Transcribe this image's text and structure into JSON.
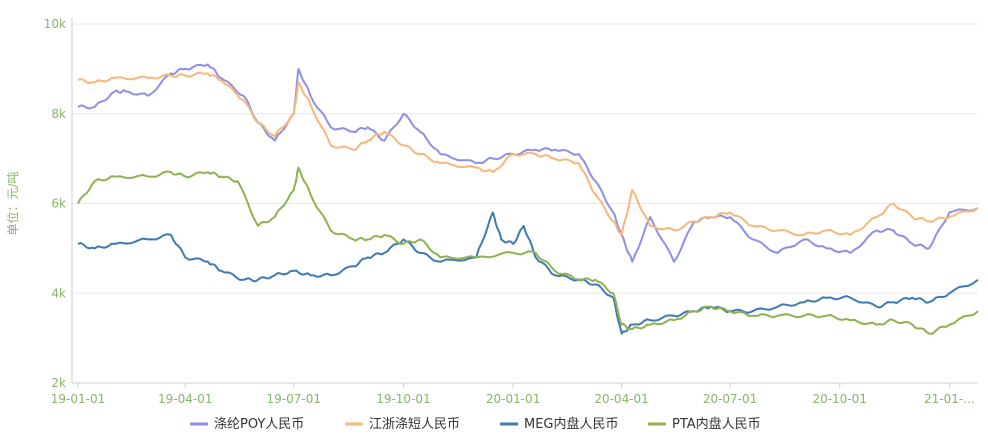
{
  "chart_data": {
    "type": "line",
    "ylabel": "单位：元/吨",
    "ylim": [
      2000,
      10000
    ],
    "yticks": [
      2000,
      4000,
      6000,
      8000,
      10000
    ],
    "ytick_labels": [
      "2k",
      "4k",
      "6k",
      "8k",
      "10k"
    ],
    "xlim": [
      "2019-01-01",
      "2021-01-25"
    ],
    "xticks": [
      "2019-01-01",
      "2019-04-01",
      "2019-07-01",
      "2019-10-01",
      "2020-01-01",
      "2020-04-01",
      "2020-07-01",
      "2020-10-01",
      "2021-01-01"
    ],
    "xtick_labels": [
      "19-01-01",
      "19-04-01",
      "19-07-01",
      "19-10-01",
      "20-01-01",
      "20-04-01",
      "20-07-01",
      "20-10-01",
      "21-01-..."
    ],
    "grid": "horizontal",
    "legend_position": "bottom",
    "axis_color": "#8ab46a",
    "series": [
      {
        "name": "涤纶POY人民币",
        "color": "#8f8fe6",
        "x": [
          "2019-01-01",
          "2019-01-15",
          "2019-02-01",
          "2019-02-10",
          "2019-03-01",
          "2019-03-20",
          "2019-04-01",
          "2019-04-20",
          "2019-05-01",
          "2019-05-20",
          "2019-06-01",
          "2019-06-15",
          "2019-07-01",
          "2019-07-05",
          "2019-07-15",
          "2019-08-01",
          "2019-08-20",
          "2019-09-01",
          "2019-09-15",
          "2019-10-01",
          "2019-10-15",
          "2019-11-01",
          "2019-12-01",
          "2019-12-15",
          "2020-01-01",
          "2020-01-20",
          "2020-02-05",
          "2020-02-25",
          "2020-03-10",
          "2020-03-25",
          "2020-04-01",
          "2020-04-10",
          "2020-04-25",
          "2020-05-15",
          "2020-06-01",
          "2020-06-15",
          "2020-07-01",
          "2020-07-20",
          "2020-08-10",
          "2020-09-01",
          "2020-09-20",
          "2020-10-10",
          "2020-11-01",
          "2020-11-15",
          "2020-12-01",
          "2020-12-15",
          "2021-01-01",
          "2021-01-25"
        ],
        "values": [
          8150,
          8150,
          8500,
          8500,
          8400,
          8900,
          9000,
          9100,
          8800,
          8400,
          7800,
          7400,
          8000,
          9000,
          8400,
          7700,
          7600,
          7700,
          7400,
          8000,
          7600,
          7100,
          6900,
          7000,
          7100,
          7200,
          7200,
          7100,
          6500,
          5800,
          5300,
          4700,
          5700,
          4700,
          5600,
          5700,
          5700,
          5200,
          4900,
          5200,
          5000,
          4900,
          5400,
          5400,
          5100,
          5000,
          5800,
          5900
        ]
      },
      {
        "name": "江浙涤短人民币",
        "color": "#f5b87a",
        "x": [
          "2019-01-01",
          "2019-01-15",
          "2019-02-01",
          "2019-03-01",
          "2019-03-20",
          "2019-04-01",
          "2019-04-20",
          "2019-05-01",
          "2019-05-20",
          "2019-06-01",
          "2019-06-15",
          "2019-07-01",
          "2019-07-05",
          "2019-07-15",
          "2019-08-01",
          "2019-08-20",
          "2019-09-01",
          "2019-09-15",
          "2019-10-01",
          "2019-10-15",
          "2019-11-01",
          "2019-12-01",
          "2019-12-15",
          "2020-01-01",
          "2020-01-20",
          "2020-02-05",
          "2020-02-25",
          "2020-03-10",
          "2020-03-25",
          "2020-04-01",
          "2020-04-10",
          "2020-04-25",
          "2020-05-15",
          "2020-06-01",
          "2020-06-15",
          "2020-07-01",
          "2020-07-20",
          "2020-08-10",
          "2020-09-01",
          "2020-09-20",
          "2020-10-10",
          "2020-11-01",
          "2020-11-15",
          "2020-12-01",
          "2020-12-15",
          "2021-01-01",
          "2021-01-25"
        ],
        "values": [
          8750,
          8700,
          8800,
          8800,
          8850,
          8850,
          8900,
          8750,
          8300,
          7800,
          7500,
          8000,
          8700,
          8200,
          7300,
          7200,
          7400,
          7600,
          7300,
          7100,
          6900,
          6800,
          6700,
          7100,
          7100,
          7000,
          6900,
          6200,
          5600,
          5300,
          6300,
          5500,
          5400,
          5600,
          5700,
          5800,
          5500,
          5400,
          5300,
          5400,
          5300,
          5700,
          6000,
          5700,
          5600,
          5700,
          5900
        ]
      },
      {
        "name": "MEG内盘人民币",
        "color": "#3f7bb0",
        "x": [
          "2019-01-01",
          "2019-01-15",
          "2019-02-01",
          "2019-03-01",
          "2019-03-20",
          "2019-04-01",
          "2019-04-20",
          "2019-05-01",
          "2019-05-20",
          "2019-06-01",
          "2019-06-15",
          "2019-07-01",
          "2019-07-15",
          "2019-08-01",
          "2019-08-20",
          "2019-09-01",
          "2019-09-15",
          "2019-10-01",
          "2019-10-15",
          "2019-11-01",
          "2019-12-01",
          "2019-12-15",
          "2019-12-22",
          "2020-01-01",
          "2020-01-10",
          "2020-01-20",
          "2020-02-05",
          "2020-02-25",
          "2020-03-10",
          "2020-03-25",
          "2020-04-01",
          "2020-04-10",
          "2020-04-25",
          "2020-05-15",
          "2020-06-01",
          "2020-06-15",
          "2020-07-01",
          "2020-07-20",
          "2020-08-10",
          "2020-09-01",
          "2020-09-20",
          "2020-10-10",
          "2020-11-01",
          "2020-11-15",
          "2020-12-01",
          "2020-12-15",
          "2021-01-01",
          "2021-01-25"
        ],
        "values": [
          5100,
          5000,
          5100,
          5200,
          5300,
          4800,
          4700,
          4500,
          4300,
          4300,
          4400,
          4500,
          4400,
          4400,
          4600,
          4800,
          4900,
          5200,
          4900,
          4700,
          4800,
          5800,
          5200,
          5100,
          5500,
          4800,
          4400,
          4300,
          4200,
          3900,
          3100,
          3300,
          3400,
          3500,
          3600,
          3700,
          3600,
          3600,
          3700,
          3800,
          3900,
          3900,
          3700,
          3800,
          3900,
          3800,
          4000,
          4300
        ]
      },
      {
        "name": "PTA内盘人民币",
        "color": "#8fb14f",
        "x": [
          "2019-01-01",
          "2019-01-15",
          "2019-02-01",
          "2019-03-01",
          "2019-03-20",
          "2019-04-01",
          "2019-04-20",
          "2019-05-01",
          "2019-05-15",
          "2019-06-01",
          "2019-06-15",
          "2019-07-01",
          "2019-07-05",
          "2019-07-15",
          "2019-08-01",
          "2019-08-20",
          "2019-09-01",
          "2019-09-15",
          "2019-10-01",
          "2019-10-15",
          "2019-11-01",
          "2019-12-01",
          "2020-01-01",
          "2020-01-20",
          "2020-02-05",
          "2020-02-25",
          "2020-03-10",
          "2020-03-25",
          "2020-04-01",
          "2020-04-10",
          "2020-04-25",
          "2020-05-15",
          "2020-06-01",
          "2020-06-15",
          "2020-07-01",
          "2020-07-20",
          "2020-08-10",
          "2020-09-01",
          "2020-09-20",
          "2020-10-10",
          "2020-11-01",
          "2020-11-15",
          "2020-12-01",
          "2020-12-15",
          "2021-01-01",
          "2021-01-25"
        ],
        "values": [
          6000,
          6500,
          6600,
          6600,
          6700,
          6600,
          6700,
          6600,
          6500,
          5500,
          5700,
          6300,
          6800,
          6200,
          5400,
          5200,
          5200,
          5300,
          5100,
          5200,
          4800,
          4800,
          4900,
          4900,
          4500,
          4300,
          4300,
          4000,
          3300,
          3200,
          3300,
          3400,
          3600,
          3700,
          3600,
          3500,
          3500,
          3500,
          3500,
          3400,
          3300,
          3400,
          3300,
          3100,
          3300,
          3600
        ]
      }
    ]
  }
}
